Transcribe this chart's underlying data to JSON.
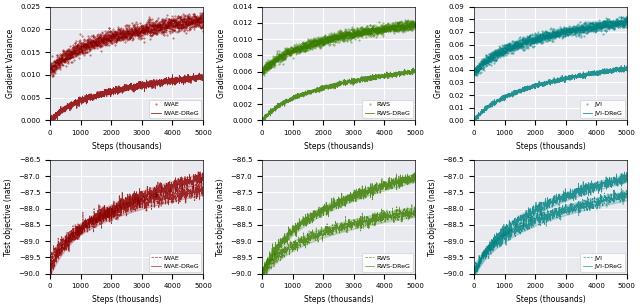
{
  "fig_width": 6.4,
  "fig_height": 3.08,
  "dpi": 100,
  "bg_color": "#e8eaf0",
  "panels": [
    {
      "row": 0,
      "col": 0,
      "ylabel": "Gradient Variance",
      "xlabel": "Steps (thousands)",
      "ylim": [
        0.0,
        0.025
      ],
      "xlim": [
        0,
        5000
      ],
      "yticks": [
        0.0,
        0.005,
        0.01,
        0.015,
        0.02,
        0.025
      ],
      "xticks": [
        0,
        1000,
        2000,
        3000,
        4000,
        5000
      ],
      "color": "#8B0000",
      "label_base": "IWAE",
      "label_dreg": "IWAE-DReG",
      "base_start": 0.011,
      "base_end": 0.022,
      "dreg_start": 0.0,
      "dreg_end": 0.0095,
      "base_noise": 0.0008,
      "dreg_noise": 0.0004
    },
    {
      "row": 0,
      "col": 1,
      "ylabel": "Gradient Variance",
      "xlabel": "Steps (thousands)",
      "ylim": [
        0.0,
        0.014
      ],
      "xlim": [
        0,
        5000
      ],
      "yticks": [
        0.0,
        0.002,
        0.004,
        0.006,
        0.008,
        0.01,
        0.012,
        0.014
      ],
      "xticks": [
        0,
        1000,
        2000,
        3000,
        4000,
        5000
      ],
      "color": "#3a7d00",
      "label_base": "RWS",
      "label_dreg": "RWS-DReG",
      "base_start": 0.006,
      "base_end": 0.0118,
      "dreg_start": 0.0,
      "dreg_end": 0.006,
      "base_noise": 0.0003,
      "dreg_noise": 0.00015
    },
    {
      "row": 0,
      "col": 2,
      "ylabel": "Gradient Variance",
      "xlabel": "Steps (thousands)",
      "ylim": [
        0.0,
        0.09
      ],
      "xlim": [
        0,
        5000
      ],
      "yticks": [
        0.0,
        0.01,
        0.02,
        0.03,
        0.04,
        0.05,
        0.06,
        0.07,
        0.08,
        0.09
      ],
      "xticks": [
        0,
        1000,
        2000,
        3000,
        4000,
        5000
      ],
      "color": "#008080",
      "label_base": "JVI",
      "label_dreg": "JVI-DReG",
      "base_start": 0.038,
      "base_end": 0.078,
      "dreg_start": 0.0,
      "dreg_end": 0.041,
      "base_noise": 0.002,
      "dreg_noise": 0.001
    },
    {
      "row": 1,
      "col": 0,
      "ylabel": "Test objective (nats)",
      "xlabel": "Steps (thousands)",
      "ylim": [
        -90.0,
        -86.5
      ],
      "xlim": [
        0,
        5000
      ],
      "yticks": [
        -90.0,
        -89.5,
        -89.0,
        -88.5,
        -88.0,
        -87.5,
        -87.0,
        -86.5
      ],
      "xticks": [
        0,
        1000,
        2000,
        3000,
        4000,
        5000
      ],
      "color": "#8B0000",
      "label_base": "IWAE",
      "label_dreg": "IWAE-DReG",
      "base_start": -89.6,
      "base_end": -87.4,
      "dreg_start": -89.9,
      "dreg_end": -87.05,
      "base_noise": 0.12,
      "dreg_noise": 0.1,
      "band_base": 0.18,
      "band_dreg": 0.15
    },
    {
      "row": 1,
      "col": 1,
      "ylabel": "Test objective (nats)",
      "xlabel": "Steps (thousands)",
      "ylim": [
        -90.0,
        -86.5
      ],
      "xlim": [
        0,
        5000
      ],
      "yticks": [
        -90.0,
        -89.5,
        -89.0,
        -88.5,
        -88.0,
        -87.5,
        -87.0,
        -86.5
      ],
      "xticks": [
        0,
        1000,
        2000,
        3000,
        4000,
        5000
      ],
      "color": "#3a7d00",
      "label_base": "RWS",
      "label_dreg": "RWS-DReG",
      "base_start": -90.0,
      "base_end": -88.1,
      "dreg_start": -90.0,
      "dreg_end": -87.05,
      "base_noise": 0.1,
      "dreg_noise": 0.09,
      "band_base": 0.15,
      "band_dreg": 0.13
    },
    {
      "row": 1,
      "col": 2,
      "ylabel": "Test objective (nats)",
      "xlabel": "Steps (thousands)",
      "ylim": [
        -90.0,
        -86.5
      ],
      "xlim": [
        0,
        5000
      ],
      "yticks": [
        -90.0,
        -89.5,
        -89.0,
        -88.5,
        -88.0,
        -87.5,
        -87.0,
        -86.5
      ],
      "xticks": [
        0,
        1000,
        2000,
        3000,
        4000,
        5000
      ],
      "color": "#008080",
      "label_base": "JVI",
      "label_dreg": "JVI-DReG",
      "base_start": -89.9,
      "base_end": -87.6,
      "dreg_start": -90.0,
      "dreg_end": -87.05,
      "base_noise": 0.1,
      "dreg_noise": 0.09,
      "band_base": 0.15,
      "band_dreg": 0.13
    }
  ]
}
